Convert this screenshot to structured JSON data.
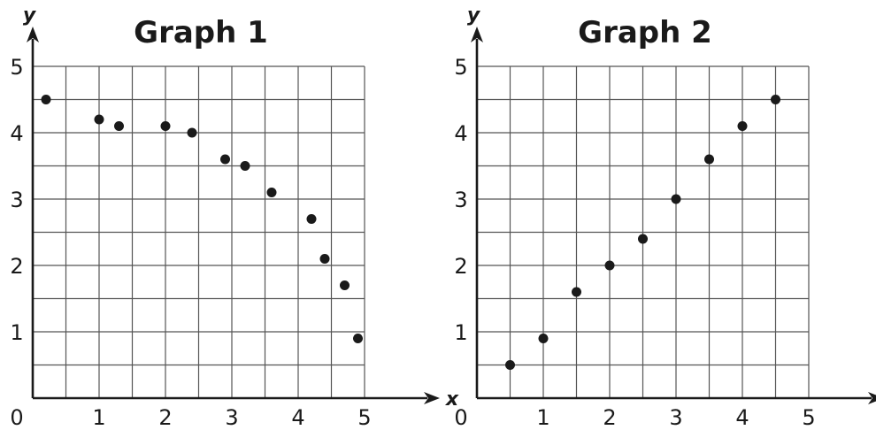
{
  "chart_data": [
    {
      "type": "scatter",
      "title": "Graph 1",
      "xlabel": "x",
      "ylabel": "y",
      "origin_label": "0",
      "xlim": [
        0,
        5.3
      ],
      "ylim": [
        0,
        5.3
      ],
      "x_ticks": [
        1,
        2,
        3,
        4,
        5
      ],
      "y_ticks": [
        1,
        2,
        3,
        4,
        5
      ],
      "grid": true,
      "grid_step": 0.5,
      "point_color": "#1a1a1a",
      "points": [
        {
          "x": 0.2,
          "y": 4.5
        },
        {
          "x": 1.0,
          "y": 4.2
        },
        {
          "x": 1.3,
          "y": 4.1
        },
        {
          "x": 2.0,
          "y": 4.1
        },
        {
          "x": 2.4,
          "y": 4.0
        },
        {
          "x": 2.9,
          "y": 3.6
        },
        {
          "x": 3.2,
          "y": 3.5
        },
        {
          "x": 3.6,
          "y": 3.1
        },
        {
          "x": 4.2,
          "y": 2.7
        },
        {
          "x": 4.4,
          "y": 2.1
        },
        {
          "x": 4.7,
          "y": 1.7
        },
        {
          "x": 4.9,
          "y": 0.9
        }
      ]
    },
    {
      "type": "scatter",
      "title": "Graph 2",
      "xlabel": "x",
      "ylabel": "y",
      "origin_label": "0",
      "xlim": [
        0,
        5.3
      ],
      "ylim": [
        0,
        5.3
      ],
      "x_ticks": [
        1,
        2,
        3,
        4,
        5
      ],
      "y_ticks": [
        1,
        2,
        3,
        4,
        5
      ],
      "grid": true,
      "grid_step": 0.5,
      "point_color": "#1a1a1a",
      "points": [
        {
          "x": 0.5,
          "y": 0.5
        },
        {
          "x": 1.0,
          "y": 0.9
        },
        {
          "x": 1.5,
          "y": 1.6
        },
        {
          "x": 2.0,
          "y": 2.0
        },
        {
          "x": 2.5,
          "y": 2.4
        },
        {
          "x": 3.0,
          "y": 3.0
        },
        {
          "x": 3.5,
          "y": 3.6
        },
        {
          "x": 4.0,
          "y": 4.1
        },
        {
          "x": 4.5,
          "y": 4.5
        }
      ]
    }
  ]
}
